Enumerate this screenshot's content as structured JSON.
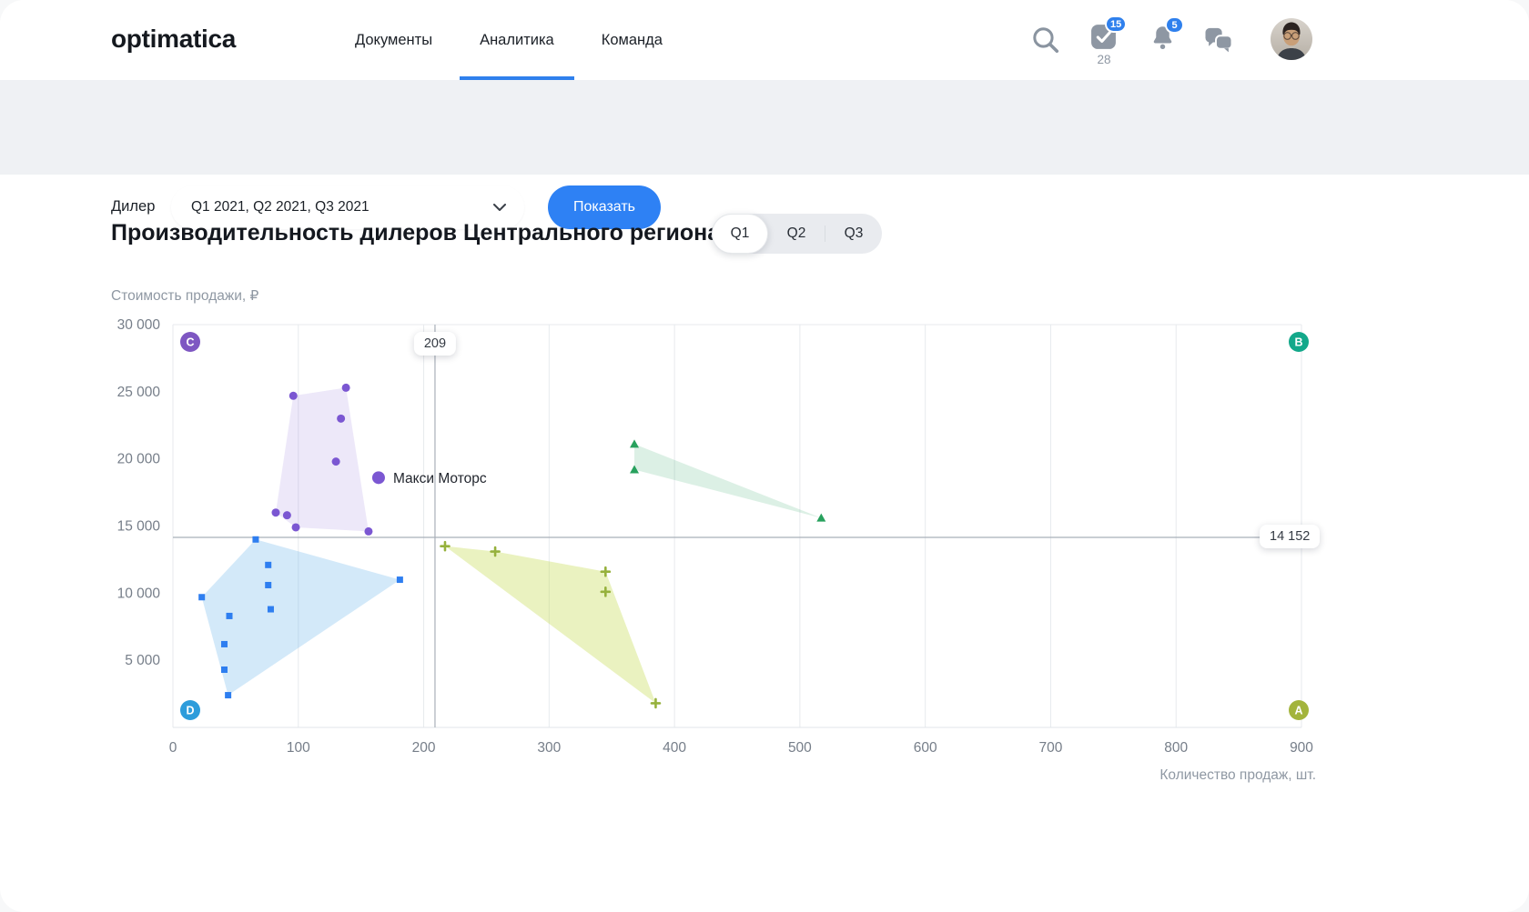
{
  "header": {
    "logo": "optimatica",
    "nav": [
      {
        "label": "Документы",
        "active": false
      },
      {
        "label": "Аналитика",
        "active": true
      },
      {
        "label": "Команда",
        "active": false
      }
    ],
    "tasks": {
      "badge": "15",
      "count": "28"
    },
    "notifications": {
      "badge": "5"
    }
  },
  "filter_bar": {
    "label": "Дилер",
    "select_value": "Q1 2021, Q2 2021, Q3 2021",
    "button_label": "Показать"
  },
  "main": {
    "title": "Производительность дилеров Центрального региона",
    "period_tabs": [
      {
        "label": "Q1",
        "active": true
      },
      {
        "label": "Q2",
        "active": false
      },
      {
        "label": "Q3",
        "active": false
      }
    ]
  },
  "chart_data": {
    "type": "scatter",
    "xlabel": "Количество продаж, шт.",
    "ylabel": "Стоимость продажи, ₽",
    "xlim": [
      0,
      900
    ],
    "ylim": [
      0,
      30000
    ],
    "grid": true,
    "x_ticks": [
      {
        "v": 0,
        "label": "0"
      },
      {
        "v": 100,
        "label": "100"
      },
      {
        "v": 200,
        "label": "200"
      },
      {
        "v": 300,
        "label": "300"
      },
      {
        "v": 400,
        "label": "400"
      },
      {
        "v": 500,
        "label": "500"
      },
      {
        "v": 600,
        "label": "600"
      },
      {
        "v": 700,
        "label": "700"
      },
      {
        "v": 800,
        "label": "800"
      },
      {
        "v": 900,
        "label": "900"
      }
    ],
    "y_ticks": [
      {
        "v": 5000,
        "label": "5 000"
      },
      {
        "v": 10000,
        "label": "10 000"
      },
      {
        "v": 15000,
        "label": "15 000"
      },
      {
        "v": 20000,
        "label": "20 000"
      },
      {
        "v": 25000,
        "label": "25 000"
      },
      {
        "v": 30000,
        "label": "30 000"
      }
    ],
    "reference_x": {
      "value": 209,
      "label": "209"
    },
    "reference_y": {
      "value": 14152,
      "label": "14 152"
    },
    "quadrants": [
      {
        "label": "C",
        "corner": "top-left",
        "color": "#7E57C2"
      },
      {
        "label": "B",
        "corner": "top-right",
        "color": "#13A88A"
      },
      {
        "label": "D",
        "corner": "bottom-left",
        "color": "#2D9CDB"
      },
      {
        "label": "A",
        "corner": "bottom-right",
        "color": "#A3B43C"
      }
    ],
    "series": [
      {
        "name": "purple-cluster",
        "marker": "circle",
        "color": "#7B57D2",
        "hull_fill": "rgba(124,91,211,0.14)",
        "points": [
          [
            96,
            24700
          ],
          [
            138,
            25300
          ],
          [
            134,
            23000
          ],
          [
            130,
            19800
          ],
          [
            82,
            16000
          ],
          [
            91,
            15800
          ],
          [
            98,
            14900
          ],
          [
            156,
            14600
          ]
        ],
        "hull": [
          [
            96,
            24700
          ],
          [
            138,
            25300
          ],
          [
            156,
            14600
          ],
          [
            98,
            14900
          ],
          [
            82,
            16000
          ]
        ],
        "labeled_point": {
          "x": 164,
          "y": 18600,
          "label": "Макси Моторс"
        }
      },
      {
        "name": "blue-cluster",
        "marker": "square",
        "color": "#2E7EF0",
        "hull_fill": "rgba(80,168,232,0.25)",
        "points": [
          [
            66,
            14000
          ],
          [
            76,
            12100
          ],
          [
            181,
            11000
          ],
          [
            76,
            10600
          ],
          [
            23,
            9700
          ],
          [
            78,
            8800
          ],
          [
            45,
            8300
          ],
          [
            41,
            6200
          ],
          [
            41,
            4300
          ],
          [
            44,
            2400
          ]
        ],
        "hull": [
          [
            23,
            9700
          ],
          [
            66,
            14000
          ],
          [
            181,
            11000
          ],
          [
            44,
            2400
          ]
        ]
      },
      {
        "name": "green-cluster",
        "marker": "triangle",
        "color": "#27A15D",
        "hull_fill": "rgba(60,170,110,0.18)",
        "points": [
          [
            368,
            21100
          ],
          [
            368,
            19200
          ],
          [
            517,
            15600
          ]
        ],
        "hull": [
          [
            368,
            21100
          ],
          [
            368,
            19200
          ],
          [
            517,
            15600
          ]
        ]
      },
      {
        "name": "olive-cluster",
        "marker": "plus",
        "color": "#96B13C",
        "hull_fill": "rgba(190,215,60,0.32)",
        "points": [
          [
            217,
            13500
          ],
          [
            257,
            13100
          ],
          [
            345,
            11600
          ],
          [
            345,
            10100
          ],
          [
            385,
            1800
          ]
        ],
        "hull": [
          [
            217,
            13500
          ],
          [
            257,
            13100
          ],
          [
            345,
            11600
          ],
          [
            385,
            1800
          ]
        ]
      }
    ]
  }
}
